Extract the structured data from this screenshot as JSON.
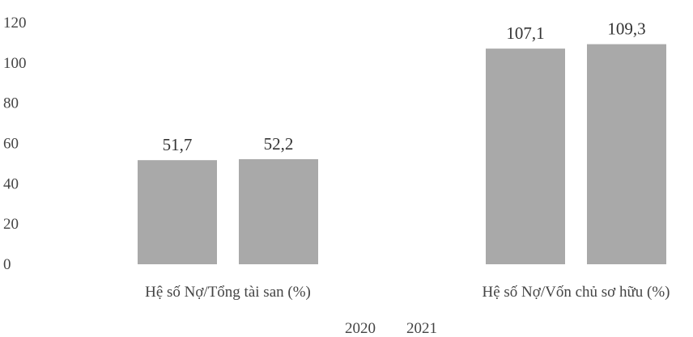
{
  "chart_data": {
    "type": "bar",
    "categories": [
      "Hệ số Nợ/Tổng tài san (%)",
      "Hệ số Nợ/Vốn chủ sơ hữu (%)"
    ],
    "series": [
      {
        "name": "2020",
        "values": [
          51.7,
          107.1
        ],
        "labels": [
          "51,7",
          "107,1"
        ]
      },
      {
        "name": "2021",
        "values": [
          52.2,
          109.3
        ],
        "labels": [
          "52,2",
          "109,3"
        ]
      }
    ],
    "yticks": [
      "0",
      "20",
      "40",
      "60",
      "80",
      "100",
      "120"
    ],
    "ylim": [
      0,
      120
    ],
    "xlabel": "",
    "ylabel": "",
    "legend_position": "bottom",
    "grid": false,
    "bar_color": "#a9a9a9",
    "legend_swatch": false
  }
}
